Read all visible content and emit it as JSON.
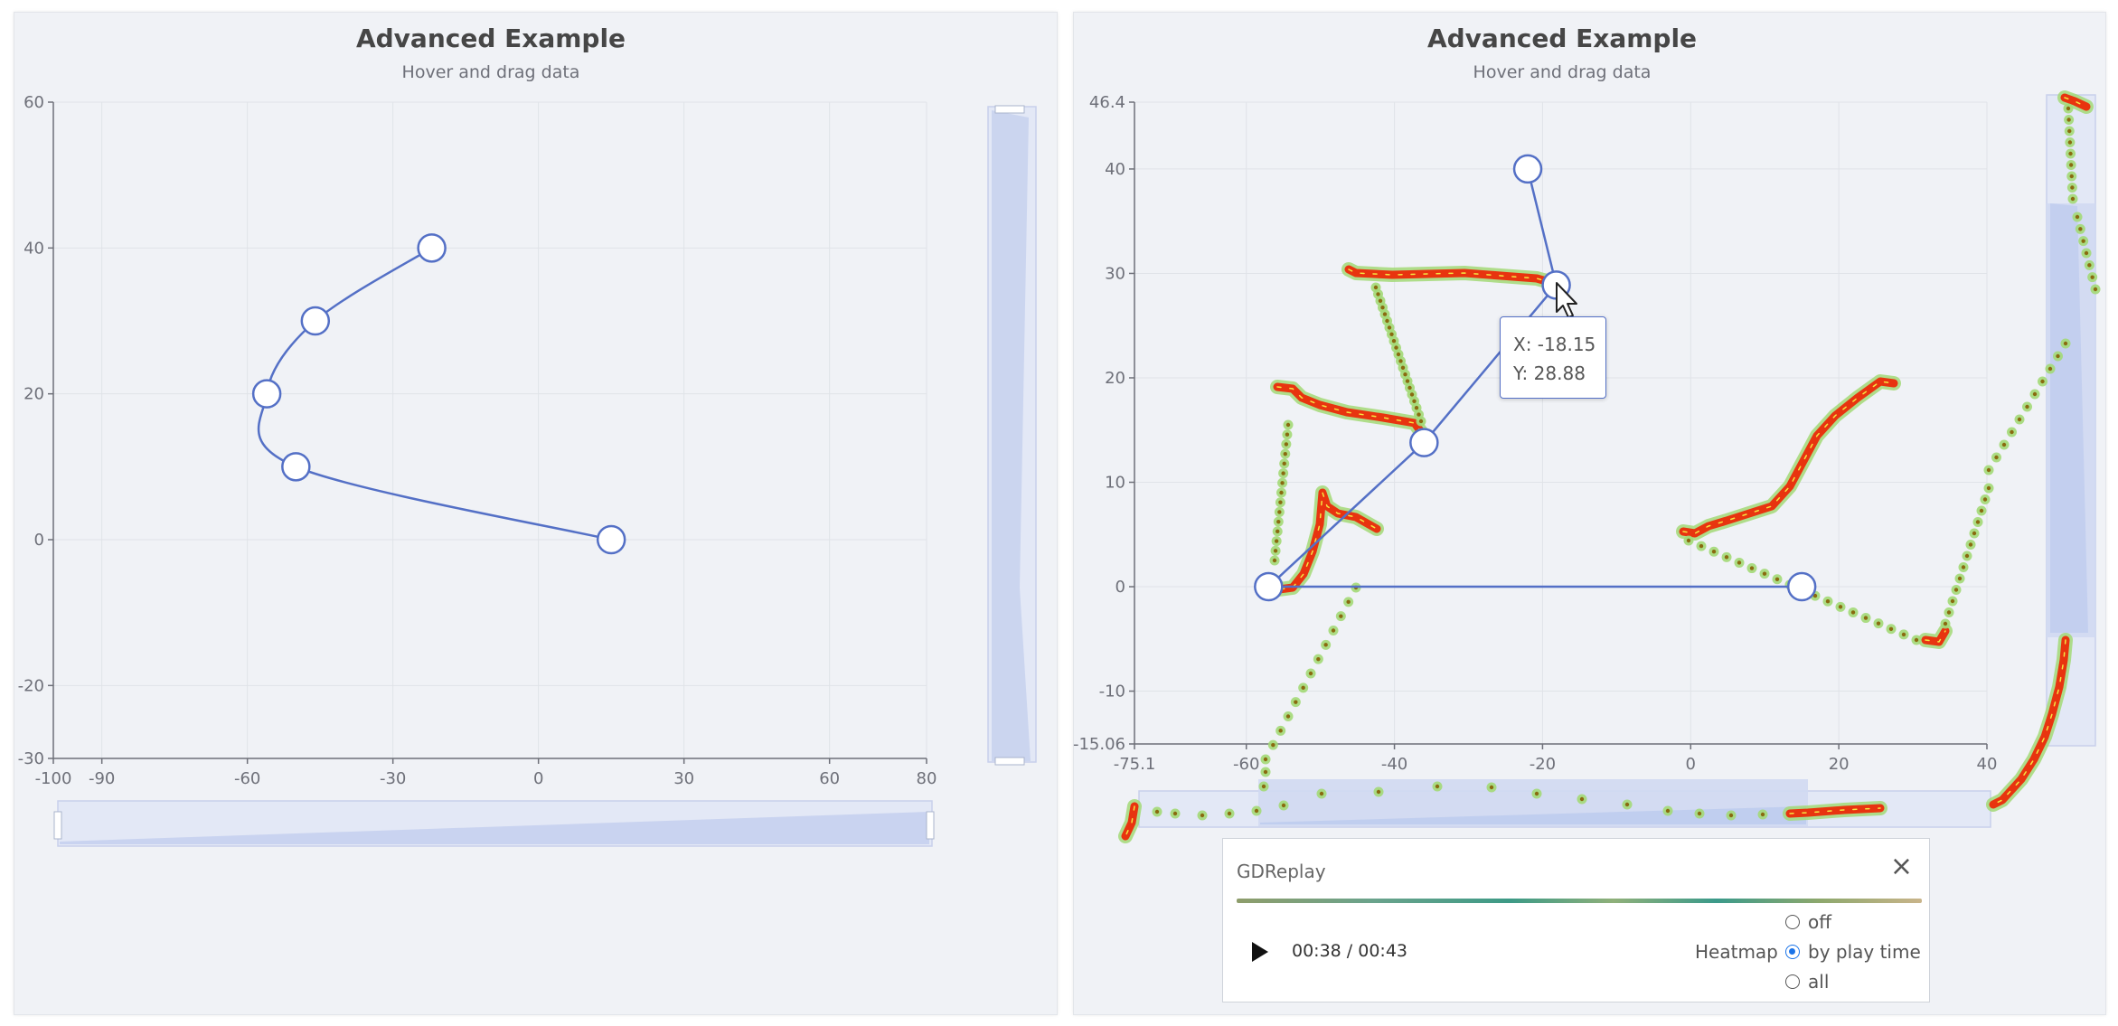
{
  "left_panel": {
    "title": "Advanced Example",
    "subtitle": "Hover and drag data"
  },
  "right_panel": {
    "title": "Advanced Example",
    "subtitle": "Hover and drag data",
    "tooltip": {
      "x_text": "X: -18.15",
      "y_text": "Y: 28.88"
    }
  },
  "replay": {
    "title": "GDReplay",
    "time": "00:38 / 00:43",
    "heatmap_label": "Heatmap",
    "options": [
      "off",
      "by play time",
      "all"
    ],
    "selected": "by play time"
  },
  "colors": {
    "series": "#5470c6",
    "heat_core": "#e8340f",
    "heat_halo": "#a3d977",
    "panel_bg": "#f0f2f6"
  },
  "chart_data": [
    {
      "type": "line",
      "smooth": true,
      "series": [
        {
          "x": [
            15,
            -50,
            -56,
            -46,
            -22
          ],
          "y": [
            0,
            10,
            20,
            30,
            40
          ]
        }
      ],
      "xlim": [
        -100,
        80
      ],
      "ylim": [
        -30,
        60
      ],
      "x_ticks": [
        "-100",
        "-90",
        "-60",
        "-30",
        "0",
        "30",
        "60",
        "80"
      ],
      "y_ticks": [
        "-30",
        "-20",
        "0",
        "20",
        "40",
        "60"
      ],
      "grid": true,
      "datazoom": [
        "x-slider-bottom",
        "y-slider-right"
      ]
    },
    {
      "type": "line",
      "smooth": false,
      "series": [
        {
          "x": [
            15,
            -57,
            -36,
            -18.15,
            -22
          ],
          "y": [
            0,
            0,
            13.8,
            28.88,
            40
          ]
        }
      ],
      "xlim": [
        -75.1,
        40
      ],
      "ylim": [
        -15.06,
        46.4
      ],
      "x_ticks": [
        "-75.1",
        "-60",
        "-40",
        "-20",
        "0",
        "20",
        "40"
      ],
      "y_ticks": [
        "-15.06",
        "-10",
        "0",
        "10",
        "20",
        "30",
        "40",
        "46.4"
      ],
      "grid": true,
      "datazoom": [
        "x-slider-bottom",
        "y-slider-right"
      ],
      "overlay": "mouse-heatmap"
    }
  ]
}
